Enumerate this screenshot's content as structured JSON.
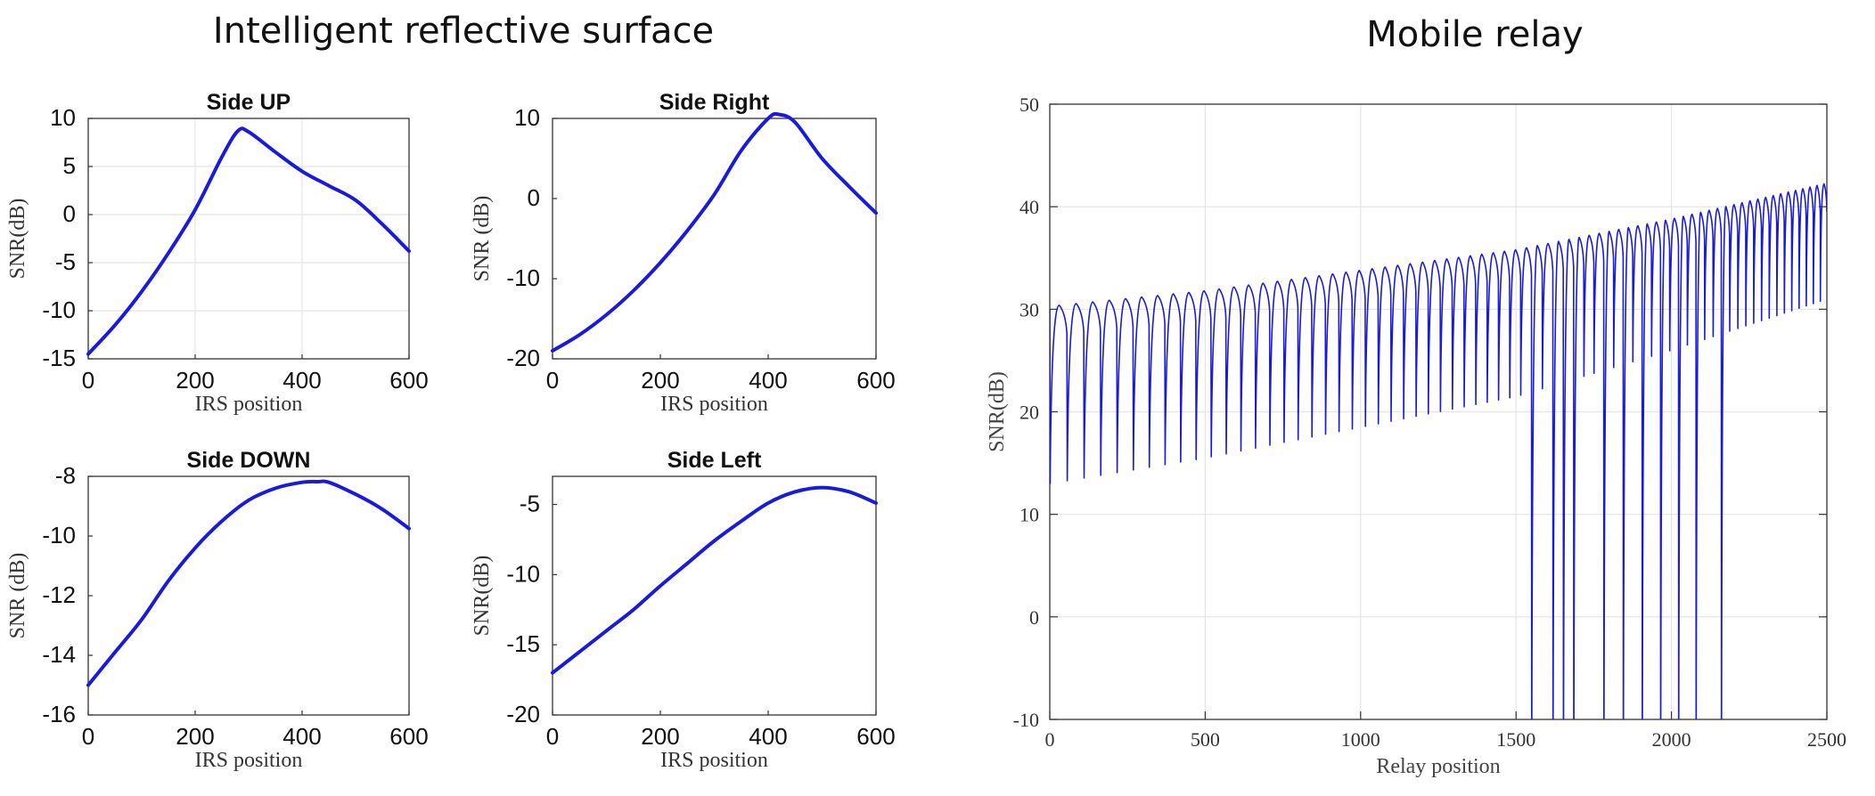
{
  "headings": {
    "left": "Intelligent reflective surface",
    "right": "Mobile relay"
  },
  "colors": {
    "line": "#1a1adc",
    "grid": "#e4e4e4",
    "axis": "#333333"
  },
  "chart_data": [
    {
      "type": "line",
      "title": "Side UP",
      "xlabel": "IRS position",
      "ylabel": "SNR(dB)",
      "xlim": [
        0,
        600
      ],
      "ylim": [
        -15,
        10
      ],
      "xticks": [
        0,
        200,
        400,
        600
      ],
      "yticks": [
        10,
        5,
        0,
        -5,
        -10,
        -15
      ],
      "grid": true,
      "x": [
        0,
        50,
        100,
        150,
        200,
        250,
        280,
        300,
        350,
        400,
        450,
        500,
        550,
        600
      ],
      "y": [
        -14.5,
        -11.5,
        -8,
        -4,
        0.5,
        6,
        8.7,
        8.6,
        6.5,
        4.5,
        3,
        1.5,
        -1,
        -3.8
      ]
    },
    {
      "type": "line",
      "title": "Side Right",
      "xlabel": "IRS position",
      "ylabel": "SNR (dB)",
      "xlim": [
        0,
        600
      ],
      "ylim": [
        -20,
        10
      ],
      "xticks": [
        0,
        200,
        400,
        600
      ],
      "yticks": [
        10,
        0,
        -10,
        -20
      ],
      "grid": false,
      "x": [
        0,
        50,
        100,
        150,
        200,
        250,
        300,
        350,
        400,
        420,
        450,
        500,
        550,
        600
      ],
      "y": [
        -19,
        -17,
        -14.5,
        -11.5,
        -8,
        -4,
        0.5,
        6,
        10,
        10.5,
        9.5,
        5,
        1.5,
        -1.8
      ]
    },
    {
      "type": "line",
      "title": "Side DOWN",
      "xlabel": "IRS position",
      "ylabel": "SNR (dB)",
      "xlim": [
        0,
        600
      ],
      "ylim": [
        -16,
        -8
      ],
      "xticks": [
        0,
        200,
        400,
        600
      ],
      "yticks": [
        -8,
        -10,
        -12,
        -14,
        -16
      ],
      "grid": false,
      "x": [
        0,
        50,
        100,
        150,
        200,
        250,
        300,
        350,
        400,
        430,
        450,
        500,
        550,
        600
      ],
      "y": [
        -15,
        -13.9,
        -12.8,
        -11.5,
        -10.4,
        -9.5,
        -8.8,
        -8.4,
        -8.2,
        -8.18,
        -8.2,
        -8.6,
        -9.1,
        -9.75
      ]
    },
    {
      "type": "line",
      "title": "Side Left",
      "xlabel": "IRS position",
      "ylabel": "SNR(dB)",
      "xlim": [
        0,
        600
      ],
      "ylim": [
        -20,
        -3
      ],
      "xticks": [
        0,
        200,
        400,
        600
      ],
      "yticks": [
        -5,
        -10,
        -15,
        -20
      ],
      "grid": false,
      "x": [
        0,
        50,
        100,
        150,
        200,
        250,
        300,
        350,
        400,
        450,
        500,
        550,
        600
      ],
      "y": [
        -17,
        -15.5,
        -14,
        -12.5,
        -10.8,
        -9.2,
        -7.6,
        -6.2,
        -4.9,
        -4.1,
        -3.8,
        -4.1,
        -4.9
      ]
    },
    {
      "type": "line",
      "title": "",
      "xlabel": "Relay position",
      "ylabel": "SNR(dB)",
      "xlim": [
        0,
        2500
      ],
      "ylim": [
        -10,
        50
      ],
      "xticks": [
        0,
        500,
        1000,
        1500,
        2000,
        2500
      ],
      "yticks": [
        50,
        40,
        30,
        20,
        10,
        0,
        -10
      ],
      "grid": true,
      "pattern": "oscillating fades with rising envelope",
      "x_start": 0,
      "x_end": 2500,
      "upper_envelope": [
        [
          0,
          30
        ],
        [
          500,
          31.5
        ],
        [
          1000,
          33.5
        ],
        [
          1500,
          35.5
        ],
        [
          2000,
          38.5
        ],
        [
          2500,
          42
        ]
      ],
      "fade_depth": [
        [
          0,
          13
        ],
        [
          500,
          15.5
        ],
        [
          1000,
          18.5
        ],
        [
          1500,
          21.5
        ],
        [
          2000,
          26
        ],
        [
          2500,
          31
        ]
      ],
      "oscillation_period_start": 55,
      "oscillation_period_end": 22,
      "deep_fades_x": [
        1555,
        1610,
        1660,
        1670,
        1790,
        1840,
        1910,
        1980,
        2030,
        2090,
        2150,
        2160
      ]
    }
  ]
}
